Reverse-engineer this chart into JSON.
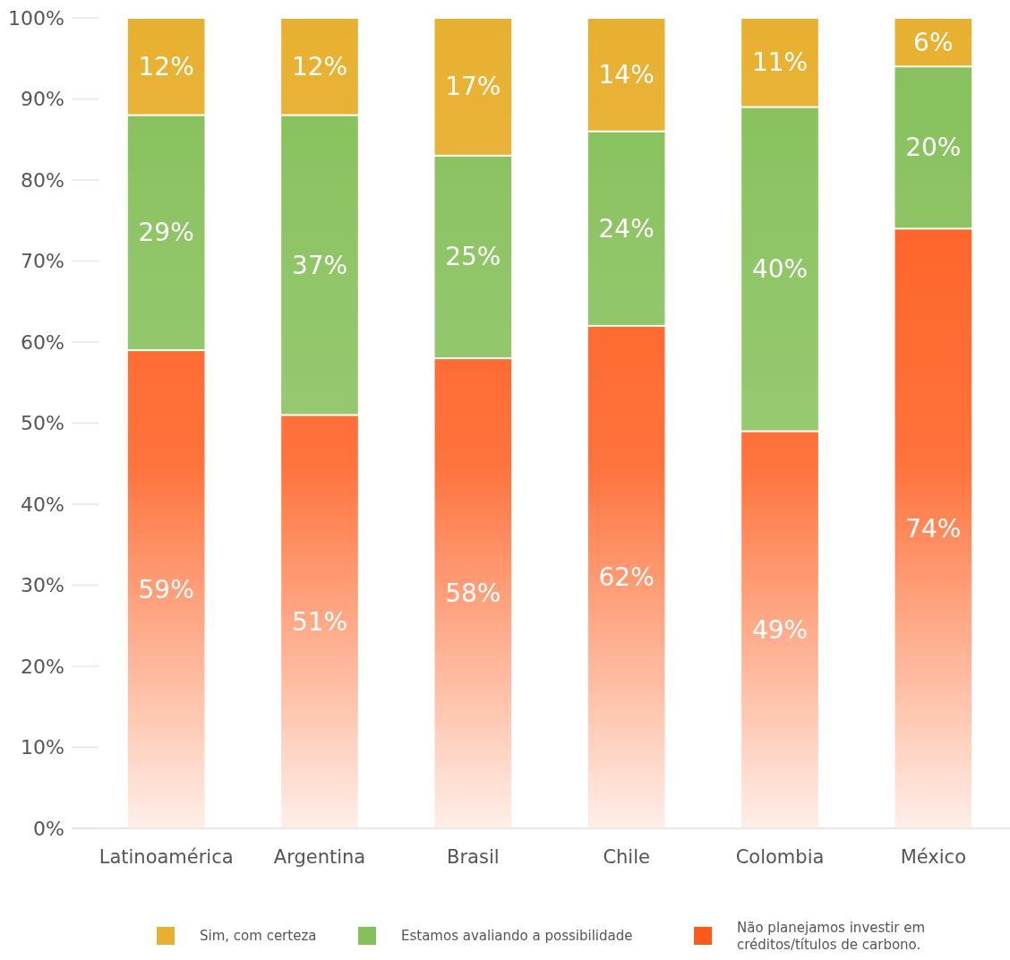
{
  "chart_data": {
    "type": "bar",
    "stacked": true,
    "categories": [
      "Latinoamérica",
      "Argentina",
      "Brasil",
      "Chile",
      "Colombia",
      "México"
    ],
    "series": [
      {
        "name": "Não planejamos investir em créditos/títulos de carbono.",
        "color": "#ff5a1a",
        "values": [
          59,
          51,
          58,
          62,
          49,
          74
        ],
        "value_labels": [
          "59%",
          "51%",
          "58%",
          "62%",
          "49%",
          "74%"
        ]
      },
      {
        "name": "Estamos avaliando a possibilidade",
        "color": "#86c05a",
        "values": [
          29,
          37,
          25,
          24,
          40,
          20
        ],
        "value_labels": [
          "29%",
          "37%",
          "25%",
          "24%",
          "40%",
          "20%"
        ]
      },
      {
        "name": "Sim, com certeza",
        "color": "#e8b030",
        "values": [
          12,
          12,
          17,
          14,
          11,
          6
        ],
        "value_labels": [
          "12%",
          "12%",
          "17%",
          "14%",
          "11%",
          "6%"
        ]
      }
    ],
    "ylim": [
      0,
      100
    ],
    "yticks": [
      {
        "value": 0,
        "label": "0%"
      },
      {
        "value": 10,
        "label": "10%"
      },
      {
        "value": 20,
        "label": "20%"
      },
      {
        "value": 30,
        "label": "30%"
      },
      {
        "value": 40,
        "label": "40%"
      },
      {
        "value": 50,
        "label": "50%"
      },
      {
        "value": 60,
        "label": "60%"
      },
      {
        "value": 70,
        "label": "70%"
      },
      {
        "value": 80,
        "label": "80%"
      },
      {
        "value": 90,
        "label": "90%"
      },
      {
        "value": 100,
        "label": "100%"
      }
    ],
    "legend": "bottom"
  }
}
